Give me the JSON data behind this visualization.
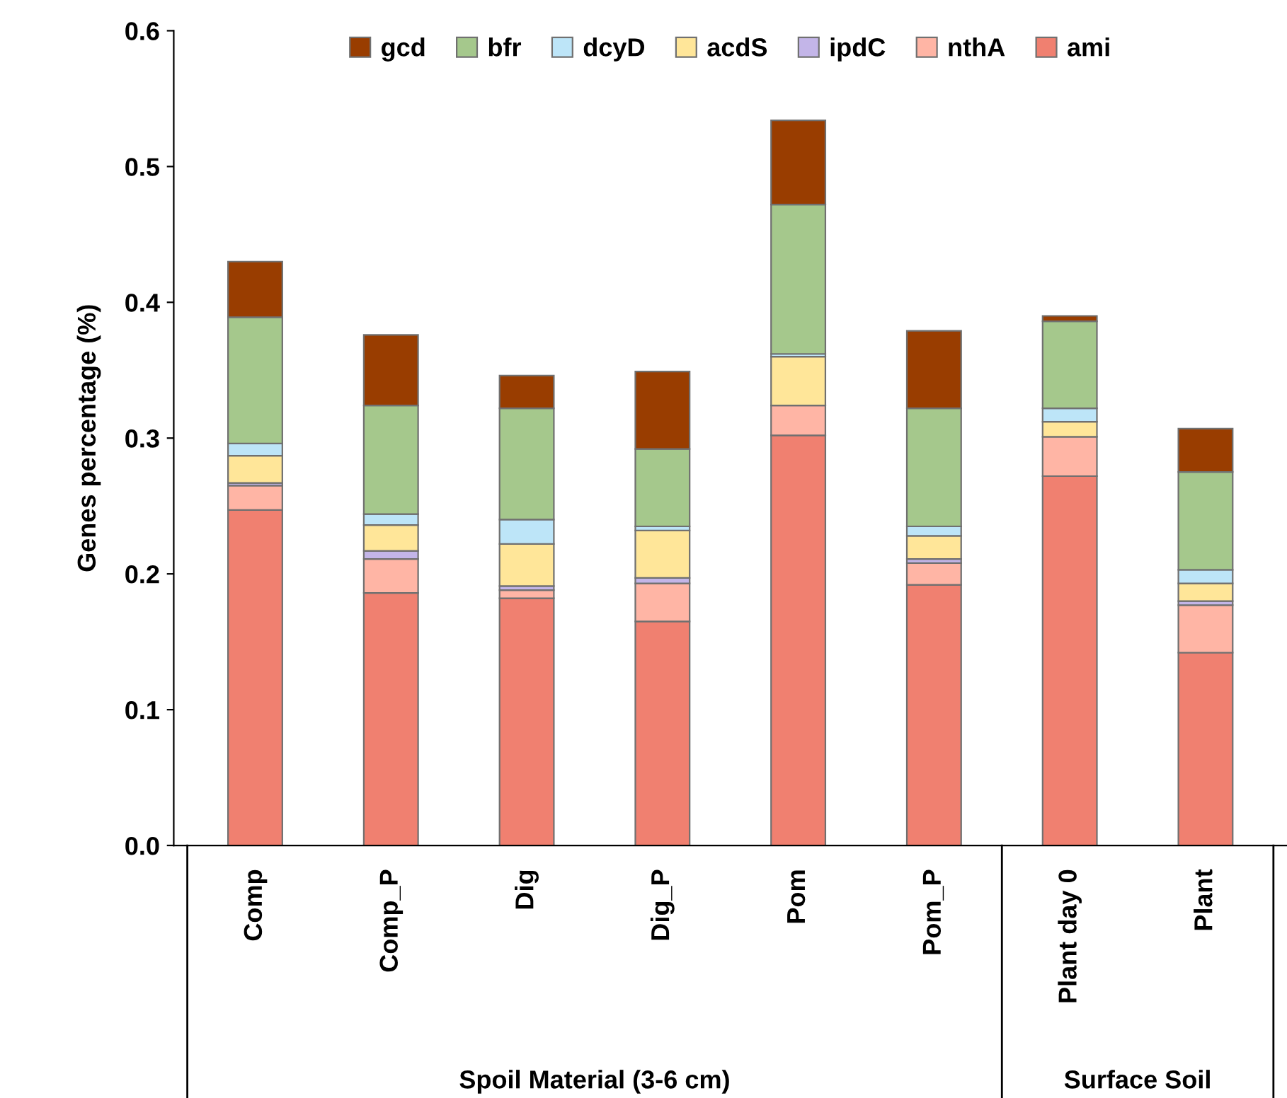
{
  "chart_data": {
    "type": "bar",
    "stacked": true,
    "ylabel": "Genes percentage (%)",
    "categories": [
      "Comp",
      "Comp_P",
      "Dig",
      "Dig_P",
      "Pom",
      "Pom_P",
      "Plant day 0",
      "Plant"
    ],
    "series": [
      {
        "name": "ami",
        "color": "#f08070",
        "values": [
          0.247,
          0.186,
          0.182,
          0.165,
          0.302,
          0.192,
          0.272,
          0.142
        ]
      },
      {
        "name": "nthA",
        "color": "#ffb5a5",
        "values": [
          0.018,
          0.025,
          0.006,
          0.028,
          0.022,
          0.016,
          0.029,
          0.035
        ]
      },
      {
        "name": "ipdC",
        "color": "#c3b5e8",
        "values": [
          0.002,
          0.006,
          0.003,
          0.004,
          null,
          0.003,
          null,
          0.003
        ]
      },
      {
        "name": "acdS",
        "color": "#ffe699",
        "values": [
          0.02,
          0.019,
          0.031,
          0.035,
          0.036,
          0.017,
          0.011,
          0.013
        ]
      },
      {
        "name": "dcyD",
        "color": "#bde5f8",
        "values": [
          0.009,
          0.008,
          0.018,
          0.003,
          0.002,
          0.007,
          0.01,
          0.01
        ]
      },
      {
        "name": "bfr",
        "color": "#a5c88c",
        "values": [
          0.093,
          0.08,
          0.082,
          0.057,
          0.11,
          0.087,
          0.064,
          0.072
        ]
      },
      {
        "name": "gcd",
        "color": "#993d00",
        "values": [
          0.041,
          0.052,
          0.024,
          0.057,
          0.062,
          0.057,
          0.004,
          0.032
        ]
      }
    ],
    "ylim": [
      0,
      0.6
    ],
    "yticks": [
      {
        "value": 0,
        "label": "0.0"
      },
      0.1,
      0.2,
      0.3,
      0.4,
      0.5,
      0.6
    ],
    "legend": "top",
    "grid": false,
    "annotations": [
      "Spoil Material (3-6 cm)",
      "Surface Soil"
    ]
  }
}
